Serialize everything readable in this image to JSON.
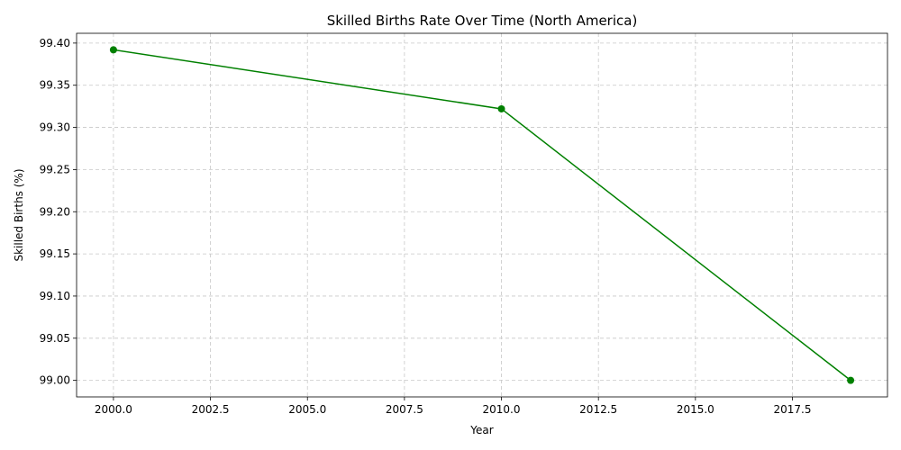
{
  "chart_data": {
    "type": "line",
    "title": "Skilled Births Rate Over Time (North America)",
    "xlabel": "Year",
    "ylabel": "Skilled Births (%)",
    "xlim": [
      1999.05,
      2019.95
    ],
    "ylim": [
      98.9804,
      99.4116
    ],
    "xticks": [
      2000.0,
      2002.5,
      2005.0,
      2007.5,
      2010.0,
      2012.5,
      2015.0,
      2017.5
    ],
    "xtick_labels": [
      "2000.0",
      "2002.5",
      "2005.0",
      "2007.5",
      "2010.0",
      "2012.5",
      "2015.0",
      "2017.5"
    ],
    "yticks": [
      99.0,
      99.05,
      99.1,
      99.15,
      99.2,
      99.25,
      99.3,
      99.35,
      99.4
    ],
    "ytick_labels": [
      "99.00",
      "99.05",
      "99.10",
      "99.15",
      "99.20",
      "99.25",
      "99.30",
      "99.35",
      "99.40"
    ],
    "grid": true,
    "series": [
      {
        "color": "#008000",
        "marker": "circle",
        "x": [
          2000,
          2010,
          2019
        ],
        "y": [
          99.392,
          99.322,
          99.0
        ]
      }
    ]
  }
}
